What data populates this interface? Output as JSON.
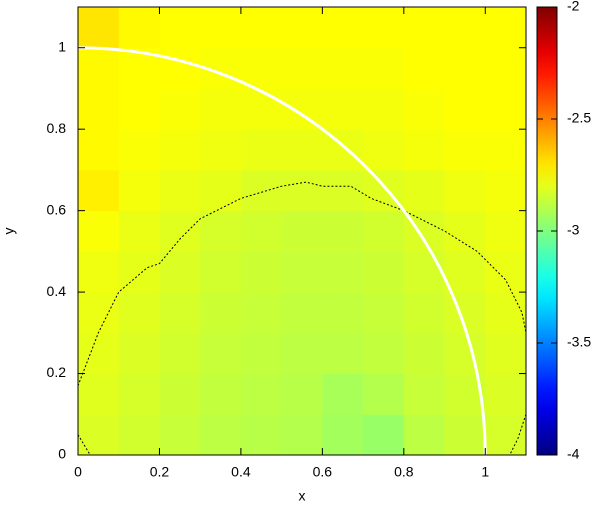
{
  "chart_data": {
    "type": "heatmap",
    "xlabel": "x",
    "ylabel": "y",
    "xlim": [
      0,
      1.1
    ],
    "ylim": [
      0,
      1.1
    ],
    "xticks": [
      0,
      0.2,
      0.4,
      0.6,
      0.8,
      1
    ],
    "yticks": [
      0,
      0.2,
      0.4,
      0.6,
      0.8,
      1
    ],
    "colormap": "jet",
    "zlim": [
      -4,
      -2
    ],
    "zticks": [
      -4,
      -3.5,
      -3,
      -2.5,
      -2
    ],
    "x_edges": [
      0,
      0.1,
      0.2,
      0.3,
      0.4,
      0.5,
      0.6,
      0.7,
      0.8,
      0.9,
      1.0,
      1.1
    ],
    "y_edges": [
      0,
      0.1,
      0.2,
      0.3,
      0.4,
      0.5,
      0.6,
      0.7,
      0.8,
      0.9,
      1.0,
      1.1
    ],
    "z": [
      [
        -2.82,
        -2.84,
        -2.86,
        -2.88,
        -2.89,
        -2.9,
        -2.93,
        -2.95,
        -2.88,
        -2.85,
        -2.83
      ],
      [
        -2.81,
        -2.83,
        -2.85,
        -2.87,
        -2.88,
        -2.89,
        -2.92,
        -2.9,
        -2.86,
        -2.84,
        -2.82
      ],
      [
        -2.8,
        -2.82,
        -2.84,
        -2.86,
        -2.87,
        -2.88,
        -2.88,
        -2.87,
        -2.85,
        -2.83,
        -2.81
      ],
      [
        -2.79,
        -2.81,
        -2.83,
        -2.85,
        -2.86,
        -2.87,
        -2.87,
        -2.86,
        -2.84,
        -2.82,
        -2.8
      ],
      [
        -2.78,
        -2.8,
        -2.82,
        -2.84,
        -2.85,
        -2.86,
        -2.86,
        -2.85,
        -2.83,
        -2.81,
        -2.79
      ],
      [
        -2.76,
        -2.79,
        -2.81,
        -2.83,
        -2.84,
        -2.85,
        -2.85,
        -2.84,
        -2.82,
        -2.8,
        -2.78
      ],
      [
        -2.72,
        -2.77,
        -2.79,
        -2.8,
        -2.82,
        -2.82,
        -2.82,
        -2.81,
        -2.8,
        -2.78,
        -2.77
      ],
      [
        -2.74,
        -2.76,
        -2.77,
        -2.78,
        -2.79,
        -2.79,
        -2.79,
        -2.78,
        -2.77,
        -2.76,
        -2.76
      ],
      [
        -2.74,
        -2.75,
        -2.76,
        -2.77,
        -2.77,
        -2.77,
        -2.77,
        -2.77,
        -2.76,
        -2.75,
        -2.75
      ],
      [
        -2.74,
        -2.75,
        -2.75,
        -2.76,
        -2.76,
        -2.76,
        -2.76,
        -2.76,
        -2.75,
        -2.75,
        -2.75
      ],
      [
        -2.7,
        -2.74,
        -2.75,
        -2.75,
        -2.75,
        -2.75,
        -2.75,
        -2.75,
        -2.75,
        -2.75,
        -2.75
      ]
    ],
    "circle": {
      "radius": 1,
      "color": "#ffffff"
    },
    "contour": {
      "color": "#000000",
      "x": [
        0,
        0.05,
        0.1,
        0.17,
        0.2,
        0.25,
        0.3,
        0.4,
        0.5,
        0.56,
        0.6,
        0.67,
        0.72,
        0.8,
        0.9,
        0.98,
        1.05,
        1.09,
        1.1,
        null,
        0,
        0.03,
        null,
        1.1,
        1.08,
        1.06
      ],
      "y": [
        0.17,
        0.3,
        0.4,
        0.46,
        0.47,
        0.53,
        0.58,
        0.63,
        0.66,
        0.67,
        0.66,
        0.66,
        0.63,
        0.6,
        0.55,
        0.5,
        0.43,
        0.35,
        0.3,
        null,
        0.05,
        0,
        null,
        0.1,
        0.04,
        0
      ]
    }
  }
}
